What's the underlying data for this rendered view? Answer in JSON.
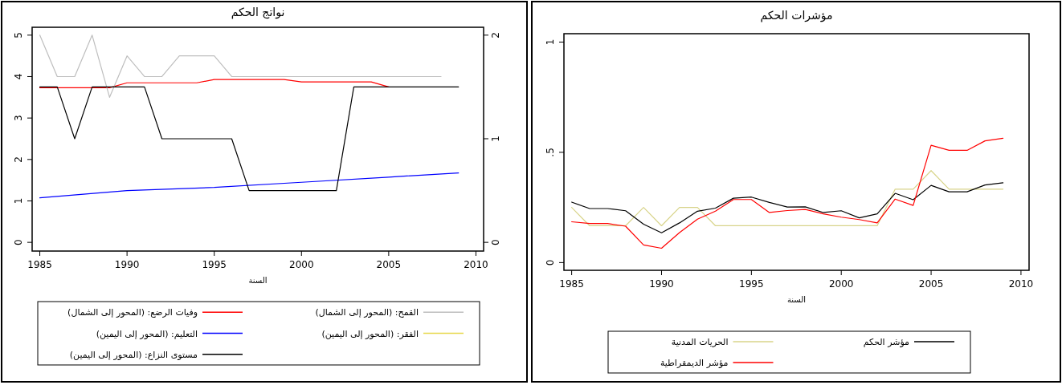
{
  "chart_data": [
    {
      "type": "line",
      "title": "نواتج الحكم",
      "xlabel": "السنة",
      "xlim": [
        1984.56,
        2010.44
      ],
      "xticks": [
        1985,
        1990,
        1995,
        2000,
        2005,
        2010
      ],
      "ylim": [
        -0.21,
        5.19
      ],
      "yticks": [
        0,
        1,
        2,
        3,
        4,
        5
      ],
      "y2lim": [
        -0.084,
        2.076
      ],
      "y2ticks": [
        0,
        1,
        2
      ],
      "legend": "bottom",
      "series": [
        {
          "name": "وفيات الرضع: (المحور إلى الشمال)",
          "color": "#ff0000",
          "x": [
            1985,
            1989,
            1990,
            1994,
            1995,
            1999,
            2000,
            2004,
            2005
          ],
          "values": [
            3.73,
            3.73,
            3.85,
            3.85,
            3.93,
            3.93,
            3.87,
            3.87,
            3.75
          ]
        },
        {
          "name": "القمح: (المحور إلى الشمال)",
          "color": "#bebebe",
          "x": [
            1985,
            1986,
            1987,
            1988,
            1989,
            1990,
            1991,
            1992,
            1993,
            1994,
            1995,
            1996,
            2008
          ],
          "values": [
            5,
            4,
            4,
            5,
            3.5,
            4.5,
            4,
            4,
            4.5,
            4.5,
            4.5,
            4,
            4
          ]
        },
        {
          "name": "التعليم: (المحور إلى اليمين)",
          "color": "#0000ff",
          "axis": "y2",
          "x": [
            1985,
            1990,
            1995,
            2000,
            2005,
            2009
          ],
          "values": [
            0.43,
            0.5,
            0.53,
            0.58,
            0.63,
            0.67
          ]
        },
        {
          "name": "الفقر: (المحور إلى اليمين)",
          "color": "#e6d84a",
          "axis": "y2"
        },
        {
          "name": "مستوى النزاع: (المحور إلى اليمين)",
          "color": "#000000",
          "axis": "y2",
          "x": [
            1985,
            1986,
            1987,
            1988,
            1991,
            1992,
            1996,
            1997,
            2002,
            2003,
            2009
          ],
          "values": [
            1.5,
            1.5,
            1.0,
            1.5,
            1.5,
            1.0,
            1.0,
            0.5,
            0.5,
            1.5,
            1.5
          ]
        }
      ]
    },
    {
      "type": "line",
      "title": "مؤشرات الحكم",
      "xlabel": "السنة",
      "xlim": [
        1984.57,
        2010.45
      ],
      "xticks": [
        1985,
        1990,
        1995,
        2000,
        2005,
        2010
      ],
      "ylim": [
        -0.035,
        1.038
      ],
      "yticks": [
        0,
        {
          "value": 0.5,
          "label": ".5"
        },
        1
      ],
      "legend": "bottom",
      "x": [
        1985,
        1986,
        1987,
        1988,
        1989,
        1990,
        1991,
        1992,
        1993,
        1994,
        1995,
        1996,
        1997,
        1998,
        1999,
        2000,
        2001,
        2002,
        2003,
        2004,
        2005,
        2006,
        2007,
        2008,
        2009
      ],
      "series": [
        {
          "name": "الحريات المدنية",
          "color": "#d8d48a",
          "values": [
            0.25,
            0.167,
            0.167,
            0.167,
            0.25,
            0.167,
            0.25,
            0.25,
            0.167,
            0.167,
            0.167,
            0.167,
            0.167,
            0.167,
            0.167,
            0.167,
            0.167,
            0.167,
            0.333,
            0.333,
            0.417,
            0.333,
            0.333,
            0.333,
            0.333
          ]
        },
        {
          "name": "مؤشر الحكم",
          "color": "#000000",
          "values": [
            0.274,
            0.245,
            0.245,
            0.235,
            0.174,
            0.135,
            0.18,
            0.233,
            0.247,
            0.292,
            0.297,
            0.273,
            0.252,
            0.253,
            0.227,
            0.235,
            0.203,
            0.221,
            0.314,
            0.285,
            0.35,
            0.321,
            0.321,
            0.352,
            0.362
          ]
        },
        {
          "name": "مؤشر الديمقراطية",
          "color": "#ff0000",
          "values": [
            0.185,
            0.177,
            0.177,
            0.165,
            0.08,
            0.065,
            0.136,
            0.197,
            0.233,
            0.286,
            0.286,
            0.227,
            0.236,
            0.241,
            0.221,
            0.206,
            0.195,
            0.18,
            0.288,
            0.259,
            0.532,
            0.509,
            0.509,
            0.552,
            0.564
          ]
        }
      ]
    }
  ]
}
